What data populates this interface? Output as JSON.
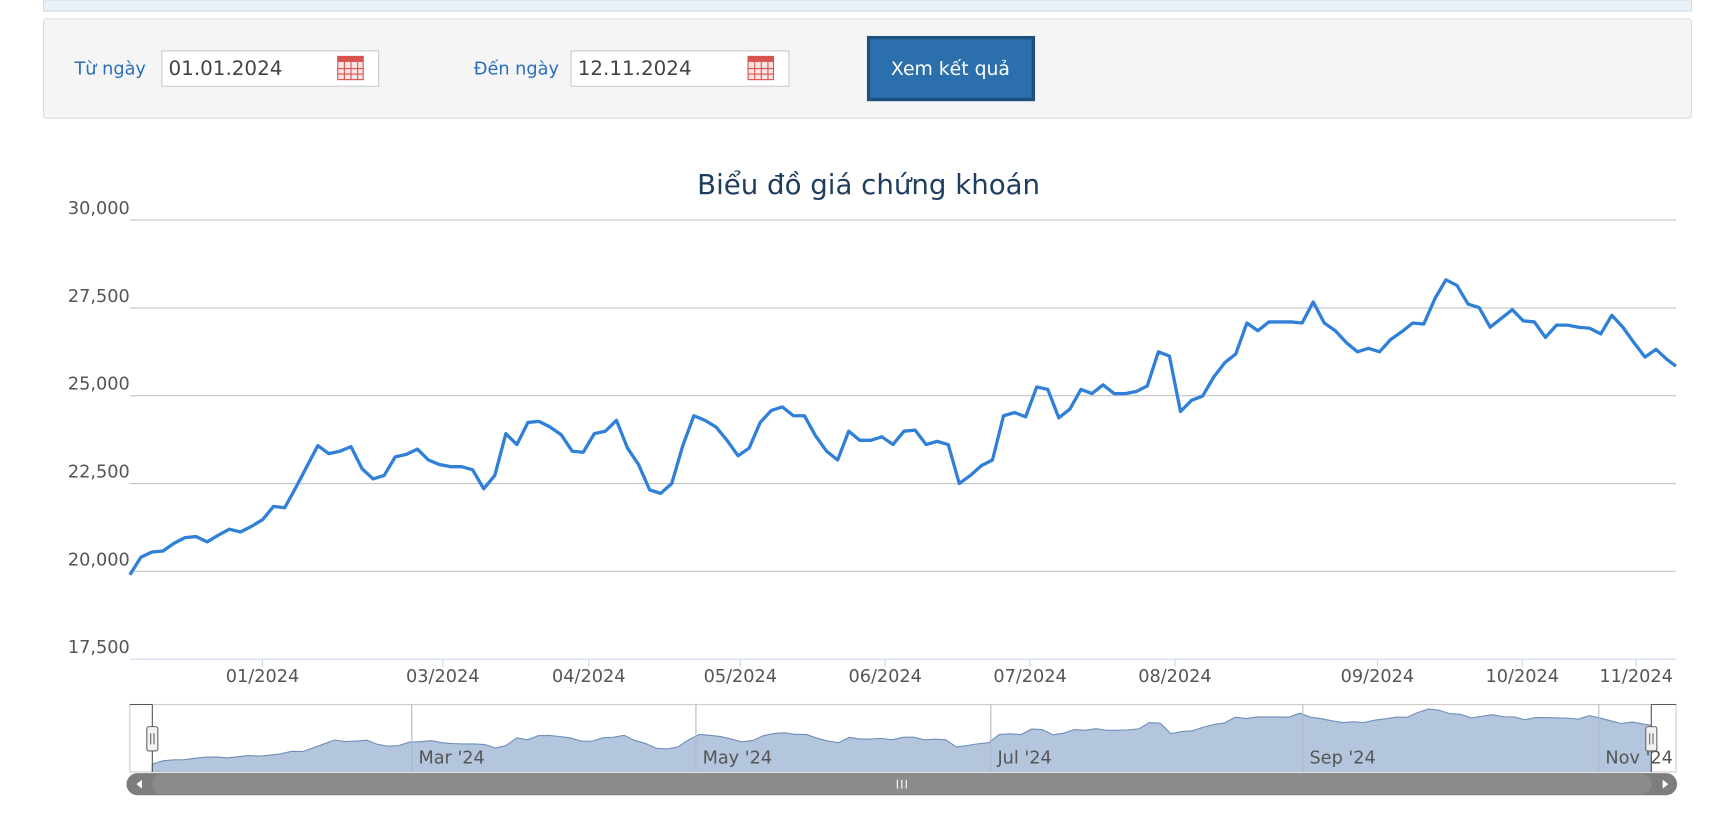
{
  "form": {
    "from_label": "Từ ngày",
    "from_value": "01.01.2024",
    "to_label": "Đến ngày",
    "to_value": "12.11.2024",
    "button": "Xem kết quả"
  },
  "chart_data": {
    "type": "line",
    "title": "Biểu đồ giá chứng khoán",
    "color": "#3180d8",
    "grid": true,
    "x": [
      0,
      1,
      2,
      3,
      4,
      5,
      6,
      7,
      8,
      9,
      10,
      11,
      12,
      13,
      14,
      15,
      16,
      17,
      18,
      19,
      20,
      21,
      22,
      23,
      24,
      25,
      26,
      27,
      28,
      29,
      30,
      31,
      32,
      33,
      34,
      35,
      36,
      37,
      38,
      39,
      40,
      41,
      42,
      43,
      44,
      45,
      46,
      47,
      48,
      49,
      50,
      51,
      52,
      53,
      54,
      55,
      56,
      57,
      58,
      59,
      60,
      61,
      62,
      63,
      64,
      65,
      66,
      67,
      68,
      69,
      70,
      71,
      72,
      73,
      74,
      75,
      76,
      77,
      78,
      79,
      80,
      81,
      82,
      83,
      84,
      85,
      86,
      87,
      88,
      89,
      90,
      91,
      92,
      93,
      94,
      95,
      96,
      97,
      98,
      99,
      100,
      101,
      102,
      103,
      104,
      105,
      106,
      107,
      108,
      109,
      110,
      111,
      112,
      113,
      114,
      115,
      116,
      117,
      118,
      119,
      120,
      121,
      122,
      123,
      124,
      125,
      126,
      127,
      128,
      129,
      130,
      131,
      132,
      133,
      134,
      135,
      136,
      137,
      138,
      139,
      139.8
    ],
    "values": [
      19900,
      20400,
      20550,
      20580,
      20800,
      20960,
      20990,
      20840,
      21030,
      21200,
      21120,
      21280,
      21470,
      21850,
      21810,
      22380,
      22980,
      23580,
      23350,
      23420,
      23550,
      22920,
      22630,
      22730,
      23260,
      23330,
      23480,
      23170,
      23040,
      22980,
      22980,
      22890,
      22350,
      22730,
      23920,
      23610,
      24240,
      24270,
      24110,
      23890,
      23420,
      23390,
      23920,
      23990,
      24300,
      23510,
      23040,
      22320,
      22220,
      22500,
      23580,
      24430,
      24300,
      24110,
      23730,
      23290,
      23510,
      24240,
      24580,
      24680,
      24430,
      24430,
      23860,
      23420,
      23170,
      23990,
      23730,
      23730,
      23830,
      23610,
      23990,
      24020,
      23610,
      23700,
      23610,
      22500,
      22730,
      23010,
      23170,
      24430,
      24520,
      24400,
      25250,
      25180,
      24370,
      24620,
      25180,
      25060,
      25310,
      25060,
      25060,
      25120,
      25280,
      26250,
      26130,
      24550,
      24870,
      24990,
      25530,
      25940,
      26190,
      27070,
      26850,
      27100,
      27100,
      27100,
      27070,
      27670,
      27070,
      26850,
      26510,
      26250,
      26350,
      26250,
      26600,
      26820,
      27070,
      27040,
      27760,
      28300,
      28140,
      27610,
      27510,
      26950,
      27200,
      27450,
      27130,
      27100,
      26660,
      27010,
      27010,
      26950,
      26920,
      26760,
      27290,
      26950,
      26510,
      26100,
      26320,
      26030,
      25840
    ],
    "xlim": [
      0,
      139.8
    ],
    "xticks": [
      {
        "value": 12,
        "label": "01/2024"
      },
      {
        "value": 28.3,
        "label": "03/2024"
      },
      {
        "value": 41.5,
        "label": "04/2024"
      },
      {
        "value": 55.2,
        "label": "05/2024"
      },
      {
        "value": 68.3,
        "label": "06/2024"
      },
      {
        "value": 81.4,
        "label": "07/2024"
      },
      {
        "value": 94.5,
        "label": "08/2024"
      },
      {
        "value": 112.8,
        "label": "09/2024"
      },
      {
        "value": 125.9,
        "label": "10/2024"
      },
      {
        "value": 136.2,
        "label": "11/2024"
      }
    ],
    "ylim": [
      17500,
      30000
    ],
    "yticks": [
      {
        "value": 17500,
        "label": "17,500"
      },
      {
        "value": 20000,
        "label": "20,000"
      },
      {
        "value": 22500,
        "label": "22,500"
      },
      {
        "value": 25000,
        "label": "25,000"
      },
      {
        "value": 27500,
        "label": "27,500"
      },
      {
        "value": 30000,
        "label": "30,000"
      }
    ],
    "navigator": {
      "xlim": [
        -2.1,
        142.1
      ],
      "ylim": [
        18700,
        29000
      ],
      "xticks": [
        {
          "value": 24.2,
          "label": "Mar '24"
        },
        {
          "value": 50.7,
          "label": "May '24"
        },
        {
          "value": 78.2,
          "label": "Jul '24"
        },
        {
          "value": 107.3,
          "label": "Sep '24"
        },
        {
          "value": 134.9,
          "label": "Nov '24"
        }
      ]
    }
  }
}
